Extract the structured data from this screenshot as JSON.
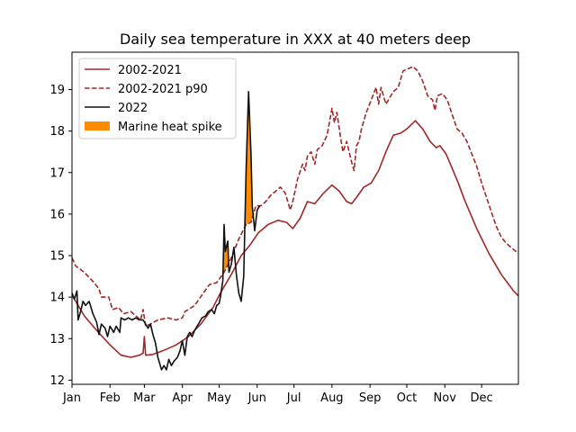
{
  "chart_data": {
    "type": "line",
    "title": "Daily sea temperature in XXX at 40 meters deep",
    "xlabel": "",
    "ylabel": "",
    "x_ticks": [
      "Jan",
      "Feb",
      "Mar",
      "Apr",
      "May",
      "Jun",
      "Jul",
      "Aug",
      "Sep",
      "Oct",
      "Nov",
      "Dec"
    ],
    "y_ticks": [
      12,
      13,
      14,
      15,
      16,
      17,
      18,
      19
    ],
    "xlim": [
      0,
      364
    ],
    "ylim": [
      11.9,
      19.9
    ],
    "grid": false,
    "legend_position": "upper-left",
    "colors": {
      "mean": "#a0282a",
      "p90": "#a0282a",
      "y2022": "#111111",
      "spike": "#ff8c00"
    },
    "series": [
      {
        "name": "2002-2021",
        "style": "solid",
        "points": [
          [
            0,
            14.05
          ],
          [
            10,
            13.55
          ],
          [
            20,
            13.2
          ],
          [
            31,
            12.85
          ],
          [
            40,
            12.6
          ],
          [
            48,
            12.55
          ],
          [
            55,
            12.6
          ],
          [
            58,
            12.65
          ],
          [
            59,
            13.05
          ],
          [
            60,
            12.6
          ],
          [
            66,
            12.62
          ],
          [
            75,
            12.72
          ],
          [
            85,
            12.85
          ],
          [
            95,
            13.05
          ],
          [
            105,
            13.35
          ],
          [
            115,
            13.75
          ],
          [
            121,
            14.1
          ],
          [
            130,
            14.55
          ],
          [
            138,
            15.0
          ],
          [
            145,
            15.25
          ],
          [
            152,
            15.55
          ],
          [
            160,
            15.75
          ],
          [
            168,
            15.85
          ],
          [
            175,
            15.8
          ],
          [
            180,
            15.65
          ],
          [
            186,
            15.9
          ],
          [
            192,
            16.3
          ],
          [
            198,
            16.25
          ],
          [
            205,
            16.5
          ],
          [
            212,
            16.7
          ],
          [
            218,
            16.55
          ],
          [
            224,
            16.3
          ],
          [
            228,
            16.25
          ],
          [
            232,
            16.4
          ],
          [
            238,
            16.65
          ],
          [
            244,
            16.75
          ],
          [
            250,
            17.05
          ],
          [
            256,
            17.5
          ],
          [
            262,
            17.9
          ],
          [
            268,
            17.95
          ],
          [
            273,
            18.05
          ],
          [
            280,
            18.25
          ],
          [
            286,
            18.05
          ],
          [
            292,
            17.75
          ],
          [
            297,
            17.6
          ],
          [
            300,
            17.65
          ],
          [
            305,
            17.45
          ],
          [
            310,
            17.1
          ],
          [
            315,
            16.75
          ],
          [
            320,
            16.35
          ],
          [
            325,
            16.0
          ],
          [
            330,
            15.65
          ],
          [
            335,
            15.35
          ],
          [
            340,
            15.05
          ],
          [
            345,
            14.8
          ],
          [
            350,
            14.55
          ],
          [
            355,
            14.35
          ],
          [
            360,
            14.15
          ],
          [
            364,
            14.03
          ]
        ]
      },
      {
        "name": "2002-2021 p90",
        "style": "dashed",
        "points": [
          [
            0,
            14.95
          ],
          [
            3,
            14.75
          ],
          [
            10,
            14.6
          ],
          [
            18,
            14.35
          ],
          [
            22,
            14.2
          ],
          [
            24,
            14.0
          ],
          [
            30,
            14.0
          ],
          [
            33,
            13.7
          ],
          [
            38,
            13.75
          ],
          [
            42,
            13.6
          ],
          [
            48,
            13.65
          ],
          [
            52,
            13.55
          ],
          [
            56,
            13.45
          ],
          [
            58,
            13.7
          ],
          [
            60,
            13.3
          ],
          [
            64,
            13.35
          ],
          [
            70,
            13.45
          ],
          [
            78,
            13.5
          ],
          [
            85,
            13.45
          ],
          [
            90,
            13.5
          ],
          [
            92,
            13.65
          ],
          [
            100,
            13.8
          ],
          [
            106,
            14.05
          ],
          [
            112,
            14.3
          ],
          [
            118,
            14.35
          ],
          [
            124,
            14.6
          ],
          [
            130,
            14.95
          ],
          [
            136,
            15.4
          ],
          [
            142,
            15.75
          ],
          [
            146,
            15.8
          ],
          [
            150,
            16.2
          ],
          [
            154,
            16.2
          ],
          [
            158,
            16.3
          ],
          [
            162,
            16.45
          ],
          [
            166,
            16.55
          ],
          [
            170,
            16.65
          ],
          [
            174,
            16.5
          ],
          [
            178,
            16.1
          ],
          [
            180,
            16.3
          ],
          [
            184,
            16.85
          ],
          [
            188,
            17.2
          ],
          [
            190,
            17.05
          ],
          [
            192,
            17.4
          ],
          [
            195,
            17.5
          ],
          [
            198,
            17.2
          ],
          [
            200,
            17.55
          ],
          [
            204,
            17.65
          ],
          [
            208,
            17.9
          ],
          [
            212,
            18.55
          ],
          [
            214,
            18.2
          ],
          [
            216,
            18.45
          ],
          [
            219,
            17.85
          ],
          [
            221,
            17.5
          ],
          [
            224,
            17.75
          ],
          [
            228,
            17.25
          ],
          [
            230,
            17.05
          ],
          [
            232,
            17.65
          ],
          [
            234,
            17.75
          ],
          [
            236,
            18.05
          ],
          [
            240,
            18.45
          ],
          [
            244,
            18.75
          ],
          [
            248,
            19.05
          ],
          [
            250,
            18.65
          ],
          [
            252,
            19.05
          ],
          [
            256,
            18.65
          ],
          [
            258,
            18.75
          ],
          [
            262,
            18.95
          ],
          [
            266,
            19.05
          ],
          [
            270,
            19.45
          ],
          [
            274,
            19.5
          ],
          [
            278,
            19.55
          ],
          [
            282,
            19.45
          ],
          [
            286,
            19.2
          ],
          [
            290,
            18.85
          ],
          [
            294,
            18.75
          ],
          [
            296,
            18.5
          ],
          [
            298,
            18.85
          ],
          [
            302,
            18.9
          ],
          [
            306,
            18.75
          ],
          [
            310,
            18.4
          ],
          [
            314,
            18.05
          ],
          [
            318,
            17.95
          ],
          [
            322,
            17.75
          ],
          [
            326,
            17.45
          ],
          [
            330,
            17.15
          ],
          [
            334,
            16.75
          ],
          [
            338,
            16.4
          ],
          [
            342,
            16.05
          ],
          [
            346,
            15.7
          ],
          [
            350,
            15.45
          ],
          [
            354,
            15.3
          ],
          [
            358,
            15.2
          ],
          [
            362,
            15.1
          ],
          [
            364,
            15.05
          ]
        ]
      },
      {
        "name": "2022",
        "style": "solid",
        "points": [
          [
            0,
            14.1
          ],
          [
            2,
            13.95
          ],
          [
            4,
            14.15
          ],
          [
            5,
            13.45
          ],
          [
            7,
            13.65
          ],
          [
            9,
            13.9
          ],
          [
            11,
            13.8
          ],
          [
            14,
            13.9
          ],
          [
            17,
            13.6
          ],
          [
            20,
            13.4
          ],
          [
            22,
            13.1
          ],
          [
            24,
            13.35
          ],
          [
            27,
            13.25
          ],
          [
            29,
            13.05
          ],
          [
            31,
            13.3
          ],
          [
            34,
            13.15
          ],
          [
            36,
            13.3
          ],
          [
            39,
            13.15
          ],
          [
            40,
            13.5
          ],
          [
            43,
            13.45
          ],
          [
            46,
            13.5
          ],
          [
            49,
            13.45
          ],
          [
            52,
            13.5
          ],
          [
            55,
            13.45
          ],
          [
            58,
            13.45
          ],
          [
            60,
            13.35
          ],
          [
            62,
            13.25
          ],
          [
            64,
            13.35
          ],
          [
            66,
            13.1
          ],
          [
            68,
            12.9
          ],
          [
            70,
            12.55
          ],
          [
            72,
            12.35
          ],
          [
            73,
            12.25
          ],
          [
            75,
            12.35
          ],
          [
            77,
            12.25
          ],
          [
            79,
            12.5
          ],
          [
            81,
            12.35
          ],
          [
            83,
            12.45
          ],
          [
            86,
            12.55
          ],
          [
            88,
            12.7
          ],
          [
            90,
            12.95
          ],
          [
            92,
            12.6
          ],
          [
            94,
            13.05
          ],
          [
            96,
            13.15
          ],
          [
            98,
            13.05
          ],
          [
            100,
            13.2
          ],
          [
            103,
            13.35
          ],
          [
            106,
            13.5
          ],
          [
            109,
            13.55
          ],
          [
            111,
            13.65
          ],
          [
            114,
            13.7
          ],
          [
            116,
            13.6
          ],
          [
            118,
            13.8
          ],
          [
            120,
            13.85
          ],
          [
            121,
            14.0
          ],
          [
            123,
            14.4
          ],
          [
            124,
            15.75
          ],
          [
            125,
            15.1
          ],
          [
            127,
            15.35
          ],
          [
            128,
            14.6
          ],
          [
            130,
            14.8
          ],
          [
            132,
            15.2
          ],
          [
            134,
            14.55
          ],
          [
            136,
            14.1
          ],
          [
            138,
            13.9
          ],
          [
            140,
            14.5
          ],
          [
            142,
            17.1
          ],
          [
            144,
            18.95
          ],
          [
            146,
            17.45
          ],
          [
            147,
            16.2
          ],
          [
            149,
            15.6
          ],
          [
            151,
            16.1
          ],
          [
            153,
            16.2
          ]
        ]
      }
    ],
    "fill_series": {
      "name": "Marine heat spike"
    },
    "legend": [
      "2002-2021",
      "2002-2021 p90",
      "2022",
      "Marine heat spike"
    ]
  }
}
